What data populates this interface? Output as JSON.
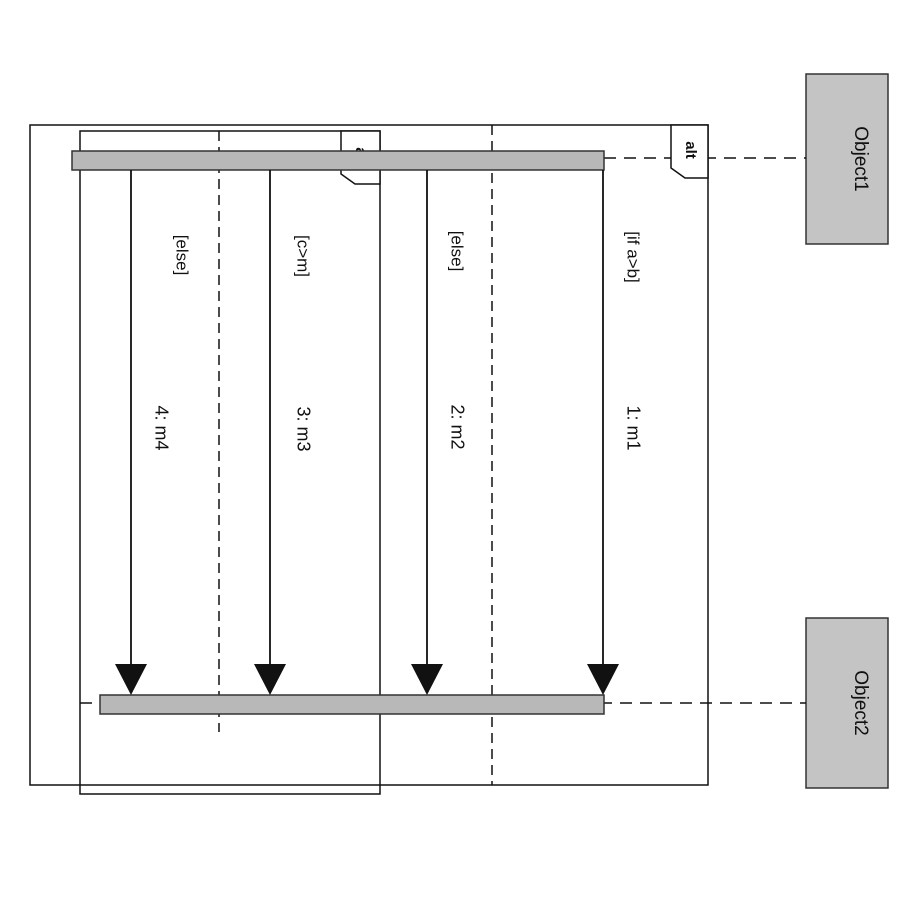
{
  "objects": {
    "top": {
      "name": "Object1"
    },
    "bottom": {
      "name": "Object2"
    }
  },
  "outer_fragment": {
    "operator": "alt",
    "operands": [
      {
        "guard": "[if a>b]",
        "message": "1: m1"
      },
      {
        "guard": "[else]",
        "message": "2: m2"
      }
    ]
  },
  "inner_fragment": {
    "operator": "alt",
    "operands": [
      {
        "guard": "[c>m]",
        "message": "3: m3"
      },
      {
        "guard": "[else]",
        "message": "4: m4"
      }
    ]
  },
  "colors": {
    "object_fill": "#c4c4c4",
    "activation_fill": "#b8b8b8",
    "line": "#111111"
  }
}
